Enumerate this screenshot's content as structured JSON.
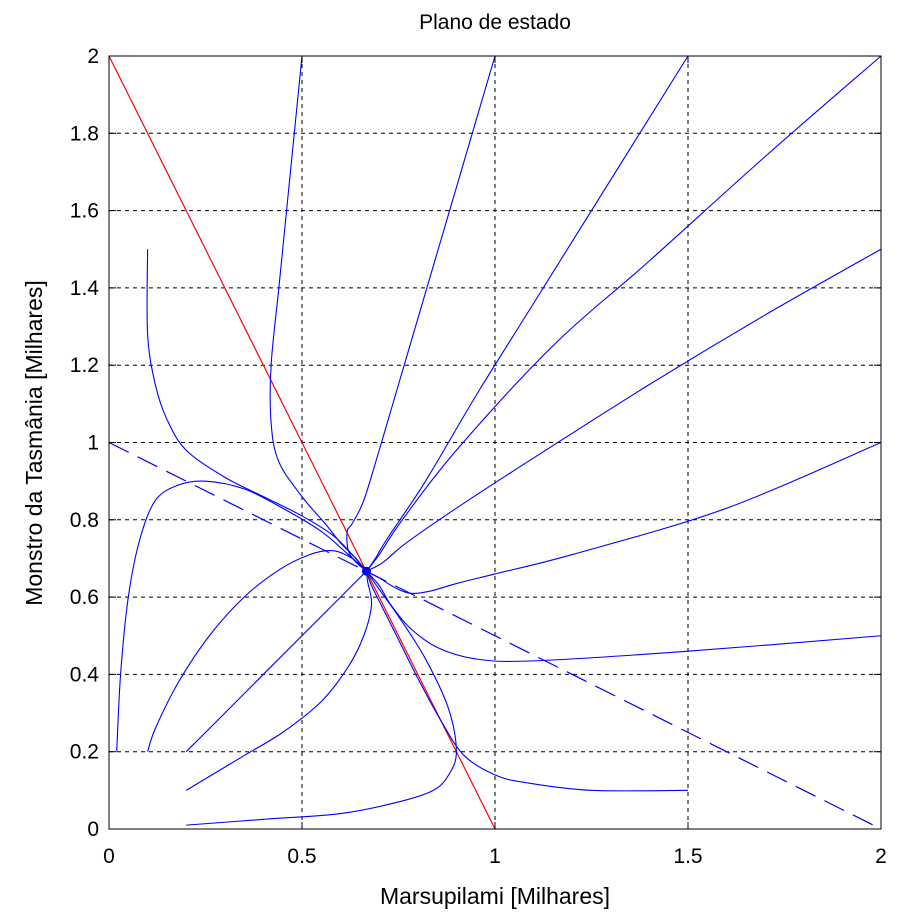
{
  "chart_data": {
    "type": "line",
    "title": "Plano de estado",
    "xlabel": "Marsupilami [Milhares]",
    "ylabel": "Monstro da Tasmânia [Milhares]",
    "xlim": [
      0,
      2
    ],
    "ylim": [
      0,
      2
    ],
    "xticks": [
      "0",
      "0.5",
      "1",
      "1.5",
      "2"
    ],
    "yticks": [
      "0",
      "0.2",
      "0.4",
      "0.6",
      "0.8",
      "1",
      "1.2",
      "1.4",
      "1.6",
      "1.8",
      "2"
    ],
    "grid": true,
    "colors": {
      "trajectory": "#0000ff",
      "nullcline_red": "#ff0000",
      "nullcline_blue": "#0000ff",
      "grid": "#000000"
    },
    "nullclines": [
      {
        "style": "solid",
        "color": "red",
        "x": [
          0,
          1
        ],
        "y": [
          2,
          0
        ]
      },
      {
        "style": "dashed",
        "color": "blue",
        "x": [
          0,
          2
        ],
        "y": [
          1,
          0
        ]
      }
    ],
    "equilibrium": {
      "x": 0.667,
      "y": 0.667
    },
    "series": [
      {
        "x": [
          0.02,
          0.03,
          0.05,
          0.08,
          0.12,
          0.18,
          0.25,
          0.35,
          0.45,
          0.55,
          0.62,
          0.667
        ],
        "y": [
          0.2,
          0.4,
          0.6,
          0.75,
          0.85,
          0.89,
          0.9,
          0.88,
          0.83,
          0.77,
          0.71,
          0.667
        ]
      },
      {
        "x": [
          0.1,
          0.1,
          0.12,
          0.15,
          0.2,
          0.3,
          0.4,
          0.5,
          0.58,
          0.63,
          0.667
        ],
        "y": [
          1.5,
          1.28,
          1.15,
          1.06,
          0.98,
          0.91,
          0.86,
          0.81,
          0.76,
          0.71,
          0.667
        ]
      },
      {
        "x": [
          0.5,
          0.48,
          0.46,
          0.44,
          0.42,
          0.42,
          0.44,
          0.5,
          0.56,
          0.6,
          0.64,
          0.667
        ],
        "y": [
          2.0,
          1.8,
          1.6,
          1.4,
          1.2,
          1.05,
          0.95,
          0.86,
          0.79,
          0.74,
          0.7,
          0.667
        ]
      },
      {
        "x": [
          1.0,
          0.95,
          0.9,
          0.85,
          0.8,
          0.75,
          0.7,
          0.66,
          0.63,
          0.617,
          0.62,
          0.64,
          0.667
        ],
        "y": [
          2.0,
          1.83,
          1.66,
          1.49,
          1.32,
          1.15,
          0.98,
          0.85,
          0.79,
          0.77,
          0.72,
          0.69,
          0.667
        ]
      },
      {
        "x": [
          1.5,
          1.3,
          1.1,
          0.95,
          0.82,
          0.72,
          0.69,
          0.667
        ],
        "y": [
          2.0,
          1.68,
          1.36,
          1.12,
          0.9,
          0.75,
          0.7,
          0.667
        ]
      },
      {
        "x": [
          2.0,
          1.7,
          1.4,
          1.15,
          0.9,
          0.76,
          0.7,
          0.667
        ],
        "y": [
          2.0,
          1.74,
          1.47,
          1.25,
          0.98,
          0.8,
          0.71,
          0.667
        ]
      },
      {
        "x": [
          2.0,
          1.7,
          1.4,
          1.1,
          0.9,
          0.77,
          0.71,
          0.667
        ],
        "y": [
          1.5,
          1.33,
          1.15,
          0.96,
          0.83,
          0.74,
          0.69,
          0.667
        ]
      },
      {
        "x": [
          2.0,
          1.6,
          1.2,
          1.0,
          0.9,
          0.83,
          0.78,
          0.74,
          0.7,
          0.667
        ],
        "y": [
          1.0,
          0.83,
          0.71,
          0.66,
          0.635,
          0.615,
          0.61,
          0.625,
          0.65,
          0.667
        ]
      },
      {
        "x": [
          2.0,
          1.5,
          1.1,
          0.95,
          0.85,
          0.78,
          0.73,
          0.7,
          0.667
        ],
        "y": [
          0.5,
          0.46,
          0.435,
          0.44,
          0.47,
          0.52,
          0.58,
          0.63,
          0.667
        ]
      },
      {
        "x": [
          1.5,
          1.25,
          1.08,
          1.0,
          0.92,
          0.86,
          0.8,
          0.75,
          0.71,
          0.68,
          0.667
        ],
        "y": [
          0.1,
          0.1,
          0.12,
          0.14,
          0.19,
          0.28,
          0.39,
          0.49,
          0.57,
          0.63,
          0.667
        ]
      },
      {
        "x": [
          0.2,
          0.4,
          0.6,
          0.75,
          0.84,
          0.88,
          0.9,
          0.88,
          0.82,
          0.75,
          0.7,
          0.667
        ],
        "y": [
          0.01,
          0.025,
          0.04,
          0.07,
          0.1,
          0.14,
          0.2,
          0.31,
          0.44,
          0.55,
          0.62,
          0.667
        ]
      },
      {
        "x": [
          0.2,
          0.25,
          0.35,
          0.45,
          0.55,
          0.62,
          0.66,
          0.68,
          0.67,
          0.667
        ],
        "y": [
          0.1,
          0.13,
          0.19,
          0.25,
          0.33,
          0.42,
          0.5,
          0.58,
          0.64,
          0.667
        ]
      },
      {
        "x": [
          0.2,
          0.35,
          0.5,
          0.6,
          0.667
        ],
        "y": [
          0.2,
          0.35,
          0.5,
          0.6,
          0.667
        ]
      },
      {
        "x": [
          0.1,
          0.12,
          0.18,
          0.26,
          0.35,
          0.44,
          0.52,
          0.58,
          0.63,
          0.667
        ],
        "y": [
          0.2,
          0.26,
          0.38,
          0.5,
          0.6,
          0.67,
          0.71,
          0.72,
          0.7,
          0.667
        ]
      }
    ]
  }
}
